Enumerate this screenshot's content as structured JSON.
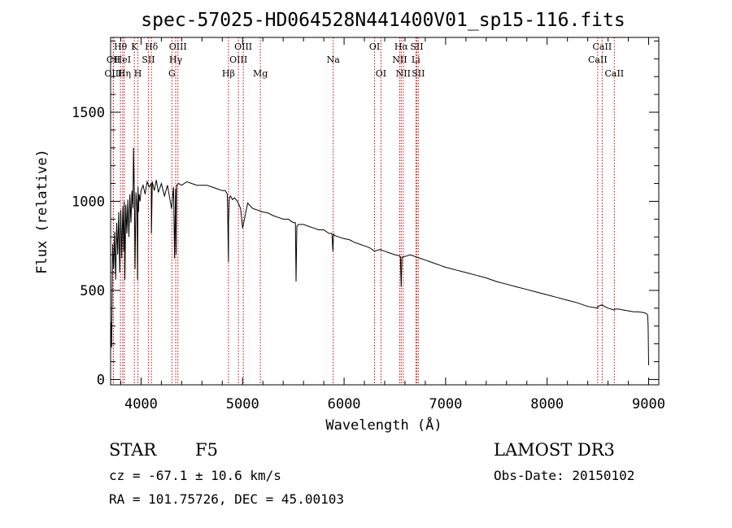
{
  "chart_data": {
    "type": "line",
    "title": "spec-57025-HD064528N441400V01_sp15-116.fits",
    "xlabel": "Wavelength (Å)",
    "ylabel": "Flux (relative)",
    "xlim": [
      3700,
      9100
    ],
    "ylim": [
      -30,
      1920
    ],
    "xticks": [
      4000,
      5000,
      6000,
      7000,
      8000,
      9000
    ],
    "yticks": [
      0,
      500,
      1000,
      1500
    ],
    "series": [
      {
        "name": "spectrum",
        "x": [
          3700,
          3705,
          3710,
          3720,
          3730,
          3740,
          3750,
          3760,
          3770,
          3780,
          3790,
          3800,
          3810,
          3820,
          3830,
          3835,
          3840,
          3850,
          3860,
          3870,
          3880,
          3890,
          3900,
          3910,
          3920,
          3925,
          3930,
          3935,
          3940,
          3950,
          3960,
          3965,
          3970,
          3975,
          3980,
          3990,
          4000,
          4020,
          4040,
          4060,
          4080,
          4100,
          4102,
          4110,
          4130,
          4150,
          4170,
          4200,
          4230,
          4260,
          4300,
          4320,
          4330,
          4340,
          4345,
          4350,
          4370,
          4400,
          4450,
          4500,
          4550,
          4600,
          4650,
          4700,
          4750,
          4800,
          4830,
          4850,
          4861,
          4862,
          4870,
          4880,
          4900,
          4920,
          4950,
          4980,
          5000,
          5050,
          5100,
          5150,
          5200,
          5250,
          5300,
          5350,
          5400,
          5450,
          5500,
          5520,
          5527,
          5535,
          5550,
          5600,
          5650,
          5700,
          5750,
          5800,
          5850,
          5880,
          5890,
          5896,
          5900,
          5950,
          6000,
          6050,
          6100,
          6150,
          6200,
          6250,
          6300,
          6350,
          6400,
          6450,
          6500,
          6540,
          6555,
          6563,
          6570,
          6580,
          6600,
          6650,
          6700,
          6750,
          6800,
          6850,
          6900,
          6950,
          7000,
          7100,
          7200,
          7300,
          7400,
          7500,
          7600,
          7700,
          7800,
          7900,
          8000,
          8100,
          8200,
          8300,
          8400,
          8498,
          8500,
          8542,
          8550,
          8600,
          8662,
          8670,
          8700,
          8750,
          8800,
          8850,
          8900,
          8950,
          8980,
          8990,
          8995,
          9000
        ],
        "values": [
          150,
          320,
          180,
          760,
          620,
          830,
          560,
          880,
          700,
          940,
          600,
          950,
          680,
          970,
          720,
          1000,
          560,
          980,
          820,
          1010,
          800,
          1040,
          880,
          1060,
          960,
          1300,
          1150,
          1020,
          620,
          1050,
          960,
          560,
          1080,
          940,
          1040,
          1000,
          1060,
          1090,
          1040,
          1110,
          1080,
          1100,
          820,
          1110,
          1060,
          1120,
          1050,
          1100,
          1030,
          1090,
          960,
          1080,
          680,
          1070,
          700,
          1090,
          1100,
          1090,
          1110,
          1100,
          1090,
          1090,
          1090,
          1080,
          1070,
          1060,
          1060,
          1040,
          660,
          880,
          1020,
          1030,
          1010,
          1020,
          1000,
          960,
          850,
          990,
          960,
          950,
          940,
          935,
          920,
          910,
          900,
          900,
          880,
          880,
          550,
          860,
          870,
          870,
          860,
          850,
          840,
          840,
          820,
          820,
          720,
          820,
          810,
          800,
          790,
          785,
          770,
          760,
          750,
          740,
          720,
          730,
          720,
          710,
          700,
          695,
          690,
          520,
          680,
          690,
          690,
          700,
          690,
          680,
          670,
          660,
          650,
          640,
          630,
          615,
          600,
          585,
          570,
          550,
          535,
          520,
          505,
          490,
          475,
          460,
          445,
          430,
          410,
          400,
          410,
          420,
          415,
          400,
          390,
          395,
          395,
          390,
          385,
          380,
          380,
          375,
          370,
          360,
          300,
          80
        ]
      }
    ],
    "emission_lines": [
      {
        "name": "CII",
        "wave": 3727,
        "row": 1
      },
      {
        "name": "OIII",
        "wave": 3727,
        "row": 2
      },
      {
        "name": "Hθ",
        "wave": 3797,
        "row": 0
      },
      {
        "name": "HeI",
        "wave": 3819,
        "row": 1
      },
      {
        "name": "Hη",
        "wave": 3835,
        "row": 2
      },
      {
        "name": "K",
        "wave": 3934,
        "row": 0
      },
      {
        "name": "H",
        "wave": 3969,
        "row": 2
      },
      {
        "name": "SII",
        "wave": 4072,
        "row": 1
      },
      {
        "name": "Hδ",
        "wave": 4102,
        "row": 0
      },
      {
        "name": "G",
        "wave": 4304,
        "row": 2
      },
      {
        "name": "Hγ",
        "wave": 4341,
        "row": 1
      },
      {
        "name": "OIII",
        "wave": 4363,
        "row": 0
      },
      {
        "name": "Hβ",
        "wave": 4861,
        "row": 2
      },
      {
        "name": "OIII",
        "wave": 4959,
        "row": 1
      },
      {
        "name": "OIII",
        "wave": 5007,
        "row": 0
      },
      {
        "name": "Mg",
        "wave": 5175,
        "row": 2
      },
      {
        "name": "Na",
        "wave": 5893,
        "row": 1
      },
      {
        "name": "OI",
        "wave": 6300,
        "row": 0
      },
      {
        "name": "OI",
        "wave": 6363,
        "row": 2
      },
      {
        "name": "NII",
        "wave": 6548,
        "row": 1
      },
      {
        "name": "Hα",
        "wave": 6563,
        "row": 0
      },
      {
        "name": "NII",
        "wave": 6583,
        "row": 2
      },
      {
        "name": "Li",
        "wave": 6707,
        "row": 1
      },
      {
        "name": "SII",
        "wave": 6716,
        "row": 0
      },
      {
        "name": "SII",
        "wave": 6731,
        "row": 2
      },
      {
        "name": "CaII",
        "wave": 8498,
        "row": 1
      },
      {
        "name": "CaII",
        "wave": 8542,
        "row": 0
      },
      {
        "name": "CaII",
        "wave": 8662,
        "row": 2
      }
    ]
  },
  "info": {
    "object_class": "STAR",
    "subclass": "F5",
    "survey": "LAMOST DR3",
    "cz": "cz = -67.1 ± 10.6 km/s",
    "obs_date": "Obs-Date: 20150102",
    "coords": "RA = 101.75726, DEC =  45.00103"
  },
  "colors": {
    "line_marker": "#cc0000",
    "spectrum": "#000000"
  }
}
